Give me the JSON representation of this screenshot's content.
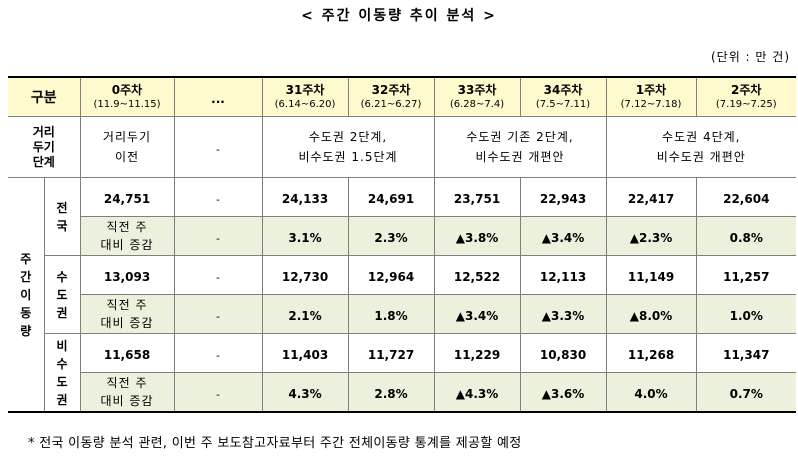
{
  "title": "< 주간 이동량 추이 분석 >",
  "unit": "(단위 : 만 건)",
  "header": {
    "label": "구분",
    "ellipsis": "...",
    "weeks": [
      {
        "week": "0주차",
        "range": "(11.9~11.15)"
      },
      {
        "week": "31주차",
        "range": "(6.14~6.20)"
      },
      {
        "week": "32주차",
        "range": "(6.21~6.27)"
      },
      {
        "week": "33주차",
        "range": "(6.28~7.4)"
      },
      {
        "week": "34주차",
        "range": "(7.5~7.11)"
      },
      {
        "week": "1주차",
        "range": "(7.12~7.18)"
      },
      {
        "week": "2주차",
        "range": "(7.19~7.25)"
      }
    ]
  },
  "distancing": {
    "label_1": "거리",
    "label_2": "두기",
    "label_3": "단계",
    "week0_1": "거리두기",
    "week0_2": "이전",
    "dash": "-",
    "group_a_1": "수도권 2단계,",
    "group_a_2": "비수도권 1.5단계",
    "group_b_1": "수도권 기존 2단계,",
    "group_b_2": "비수도권 개편안",
    "group_c_1": "수도권 4단계,",
    "group_c_2": "비수도권 개편안"
  },
  "side_label": "주간이동량",
  "change_label_1": "직전 주",
  "change_label_2": "대비 증감",
  "dash": "-",
  "regions": [
    {
      "name": "전국",
      "values": [
        "24,751",
        "24,133",
        "24,691",
        "23,751",
        "22,943",
        "22,417",
        "22,604"
      ],
      "changes": [
        "3.1%",
        "2.3%",
        "▲3.8%",
        "▲3.4%",
        "▲2.3%",
        "0.8%"
      ]
    },
    {
      "name": "수도권",
      "values": [
        "13,093",
        "12,730",
        "12,964",
        "12,522",
        "12,113",
        "11,149",
        "11,257"
      ],
      "changes": [
        "2.1%",
        "1.8%",
        "▲3.4%",
        "▲3.3%",
        "▲8.0%",
        "1.0%"
      ]
    },
    {
      "name": "비수도권",
      "values": [
        "11,658",
        "11,403",
        "11,727",
        "11,229",
        "10,830",
        "11,268",
        "11,347"
      ],
      "changes": [
        "4.3%",
        "2.8%",
        "▲4.3%",
        "▲3.6%",
        "4.0%",
        "0.7%"
      ]
    }
  ],
  "footnote": "* 전국 이동량 분석 관련, 이번 주 보도참고자료부터 주간 전체이동량 통계를 제공할 예정"
}
